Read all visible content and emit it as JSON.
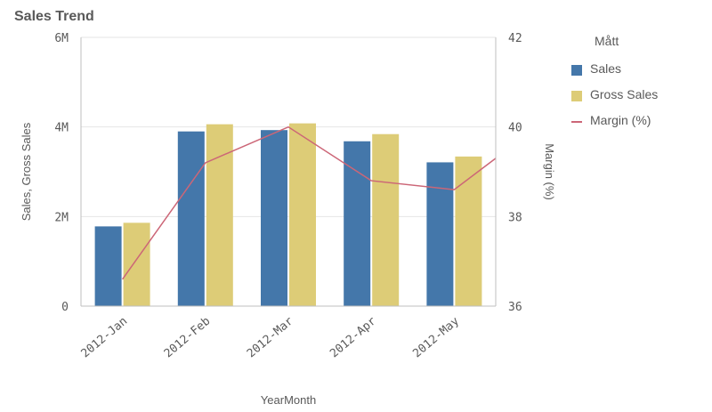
{
  "title": "Sales Trend",
  "legend": {
    "title": "Mått",
    "items": [
      {
        "label": "Sales",
        "color": "#4477aa",
        "kind": "bar"
      },
      {
        "label": "Gross Sales",
        "color": "#ddcc77",
        "kind": "bar"
      },
      {
        "label": "Margin (%)",
        "color": "#cc6677",
        "kind": "line"
      }
    ]
  },
  "chart_data": {
    "type": "bar",
    "categories": [
      "2012-Jan",
      "2012-Feb",
      "2012-Mar",
      "2012-Apr",
      "2012-May"
    ],
    "series": [
      {
        "name": "Sales",
        "type": "bar",
        "axis": "left",
        "color": "#4477aa",
        "values": [
          1780000,
          3900000,
          3930000,
          3680000,
          3210000
        ]
      },
      {
        "name": "Gross Sales",
        "type": "bar",
        "axis": "left",
        "color": "#ddcc77",
        "values": [
          1860000,
          4060000,
          4080000,
          3840000,
          3340000
        ]
      },
      {
        "name": "Margin (%)",
        "type": "line",
        "axis": "right",
        "color": "#cc6677",
        "values": [
          36.6,
          39.2,
          40.0,
          38.8,
          38.6
        ]
      }
    ],
    "xlabel": "YearMonth",
    "ylabel": "Sales, Gross Sales",
    "y2label": "Margin (%)",
    "ylim": [
      0,
      6000000
    ],
    "y2lim": [
      36,
      42
    ],
    "yticks": [
      {
        "value": 0,
        "label": "0"
      },
      {
        "value": 2000000,
        "label": "2M"
      },
      {
        "value": 4000000,
        "label": "4M"
      },
      {
        "value": 6000000,
        "label": "6M"
      }
    ],
    "y2ticks": [
      {
        "value": 36,
        "label": "36"
      },
      {
        "value": 38,
        "label": "38"
      },
      {
        "value": 40,
        "label": "40"
      },
      {
        "value": 42,
        "label": "42"
      }
    ],
    "line_continues_to": 39.3,
    "grid": true,
    "legend_position": "right"
  }
}
